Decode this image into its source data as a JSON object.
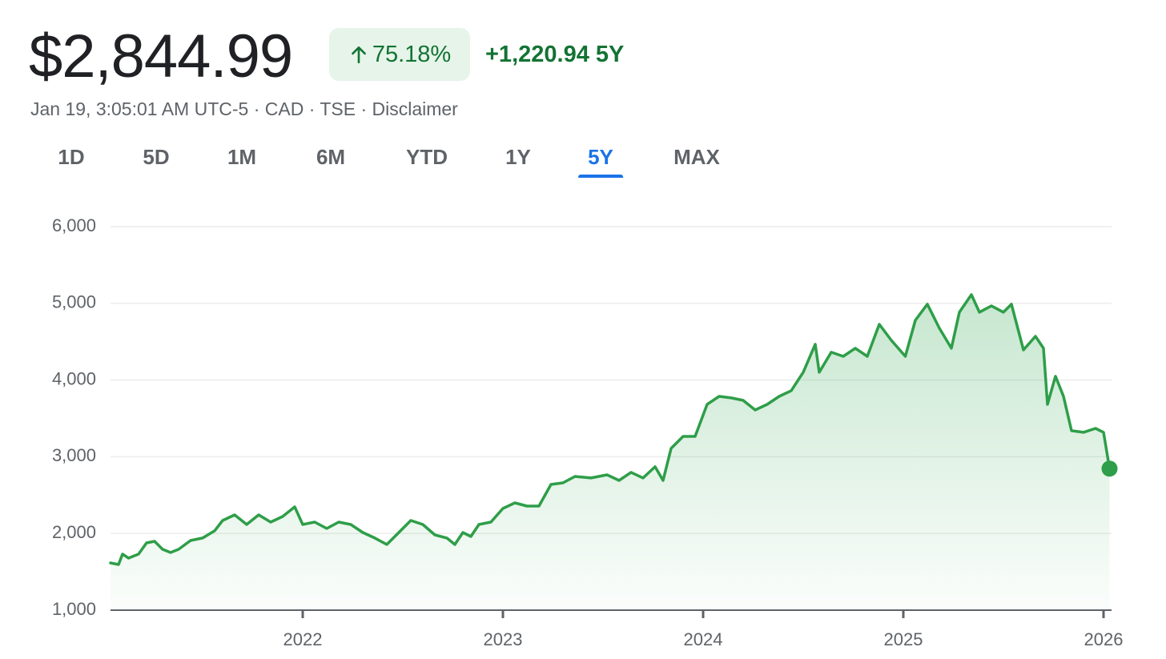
{
  "header": {
    "price": "$2,844.99",
    "change_percent": "75.18%",
    "change": "+1,220.94 5Y",
    "subline": "Jan 19, 3:05:01 AM UTC-5 · CAD · TSE · Disclaimer"
  },
  "tabs": {
    "items": [
      "1D",
      "5D",
      "1M",
      "6M",
      "YTD",
      "1Y",
      "5Y",
      "MAX"
    ],
    "selected": "5Y"
  },
  "chart_data": {
    "type": "area-line",
    "color": "#2e9e48",
    "grid": true,
    "xlim": [
      2021.04,
      2026.04
    ],
    "xticks": [
      2022,
      2023,
      2024,
      2025,
      2026
    ],
    "ylim": [
      1000,
      6000
    ],
    "yticks": [
      {
        "value": 1000,
        "label": "1,000"
      },
      {
        "value": 2000,
        "label": "2,000"
      },
      {
        "value": 3000,
        "label": "3,000"
      },
      {
        "value": 4000,
        "label": "4,000"
      },
      {
        "value": 5000,
        "label": "5,000"
      },
      {
        "value": 6000,
        "label": "6,000"
      }
    ],
    "x": [
      2021.04,
      2021.08,
      2021.1,
      2021.13,
      2021.18,
      2021.22,
      2021.26,
      2021.3,
      2021.34,
      2021.38,
      2021.44,
      2021.5,
      2021.56,
      2021.6,
      2021.66,
      2021.72,
      2021.78,
      2021.84,
      2021.9,
      2021.96,
      2022.0,
      2022.06,
      2022.12,
      2022.18,
      2022.24,
      2022.3,
      2022.36,
      2022.42,
      2022.48,
      2022.54,
      2022.6,
      2022.66,
      2022.72,
      2022.76,
      2022.8,
      2022.84,
      2022.88,
      2022.94,
      2023.0,
      2023.06,
      2023.12,
      2023.18,
      2023.24,
      2023.3,
      2023.36,
      2023.44,
      2023.52,
      2023.58,
      2023.64,
      2023.7,
      2023.76,
      2023.8,
      2023.84,
      2023.9,
      2023.96,
      2024.02,
      2024.08,
      2024.14,
      2024.2,
      2024.26,
      2024.32,
      2024.38,
      2024.44,
      2024.5,
      2024.56,
      2024.58,
      2024.64,
      2024.7,
      2024.76,
      2024.82,
      2024.88,
      2024.94,
      2025.01,
      2025.06,
      2025.12,
      2025.18,
      2025.24,
      2025.28,
      2025.34,
      2025.38,
      2025.44,
      2025.5,
      2025.54,
      2025.6,
      2025.66,
      2025.7,
      2025.72,
      2025.76,
      2025.8,
      2025.84,
      2025.9,
      2025.96,
      2026.0,
      2026.03
    ],
    "values": [
      1616,
      1595,
      1731,
      1679,
      1731,
      1877,
      1898,
      1793,
      1752,
      1793,
      1908,
      1940,
      2034,
      2169,
      2242,
      2117,
      2242,
      2148,
      2221,
      2347,
      2117,
      2148,
      2065,
      2148,
      2117,
      2013,
      1940,
      1856,
      2013,
      2169,
      2117,
      1981,
      1940,
      1856,
      2013,
      1960,
      2117,
      2148,
      2326,
      2399,
      2357,
      2357,
      2639,
      2660,
      2743,
      2723,
      2764,
      2691,
      2796,
      2723,
      2869,
      2691,
      3109,
      3265,
      3265,
      3683,
      3787,
      3767,
      3735,
      3610,
      3683,
      3787,
      3861,
      4101,
      4466,
      4101,
      4362,
      4309,
      4414,
      4309,
      4727,
      4518,
      4309,
      4779,
      4988,
      4675,
      4414,
      4884,
      5113,
      4884,
      4967,
      4884,
      4988,
      4393,
      4570,
      4414,
      3683,
      4049,
      3787,
      3339,
      3318,
      3370,
      3318,
      2844.99
    ]
  }
}
